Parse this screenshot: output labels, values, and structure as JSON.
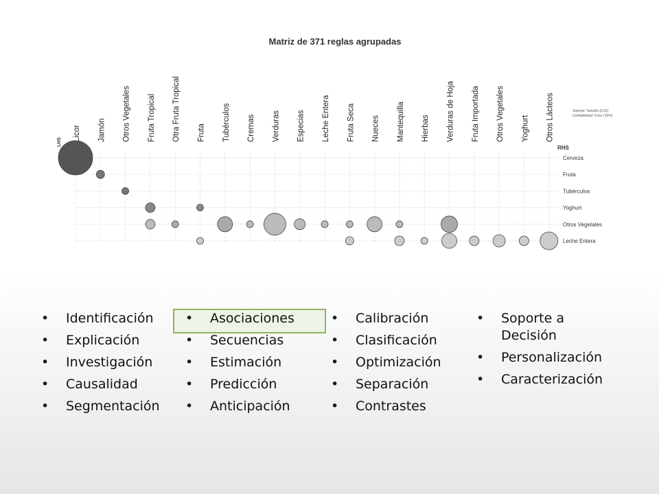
{
  "slide": {
    "matrix": {
      "title": "Matriz de 371 reglas agrupadas",
      "lhs_label": "LHS",
      "rhs_label": "RHS",
      "legend": [
        "Soporte: Tamaño (0.01)",
        "Confiabilidad: Color (10%)"
      ],
      "columns": [
        "Licor",
        "Jamón",
        "Otros Vegetales",
        "Fruta Tropical",
        "Otra Fruta Tropical",
        "Fruta",
        "Tubérculos",
        "Cremas",
        "Verduras",
        "Especias",
        "Leche Entera",
        "Fruta Seca",
        "Nueces",
        "Mantequilla",
        "Hierbas",
        "Verduras de Hoja",
        "Fruta Importada",
        "Otros Vegetales",
        "Yoghurt",
        "Otros Lácteos"
      ],
      "rows": [
        "Cerveza",
        "Fruta",
        "Tubérculos",
        "Yoghurt",
        "Otros Vegetales",
        "Leche Entera"
      ]
    },
    "lists": [
      [
        "Identificación",
        "Explicación",
        "Investigación",
        "Causalidad",
        "Segmentación"
      ],
      [
        "Asociaciones",
        "Secuencias",
        "Estimación",
        "Predicción",
        "Anticipación"
      ],
      [
        "Calibración",
        "Clasificación",
        "Optimización",
        "Separación",
        "Contrastes"
      ],
      [
        "Soporte a Decisión",
        "Personalización",
        "Caracterización"
      ]
    ]
  }
}
